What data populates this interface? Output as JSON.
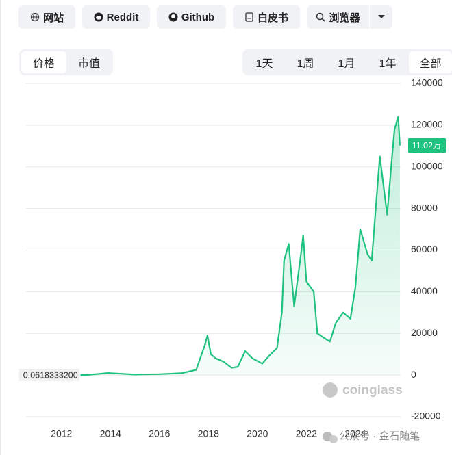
{
  "buttons": [
    "网站",
    "Reddit",
    "Github",
    "白皮书",
    "浏览器"
  ],
  "tabs": [
    "价格",
    "市值"
  ],
  "ranges": [
    "1天",
    "1周",
    "1月",
    "1年",
    "全部"
  ],
  "chart_data": {
    "type": "line",
    "fill": true,
    "color": "#1ec27e",
    "grid": true,
    "x": [
      2012.78,
      2013.0,
      2013.9,
      2014.0,
      2014.5,
      2015.0,
      2016.0,
      2016.9,
      2017.5,
      2017.87,
      2017.96,
      2018.1,
      2018.3,
      2018.6,
      2018.95,
      2019.2,
      2019.5,
      2019.8,
      2020.2,
      2020.5,
      2020.8,
      2021.0,
      2021.09,
      2021.28,
      2021.5,
      2021.8,
      2021.87,
      2022.0,
      2022.3,
      2022.45,
      2022.96,
      2023.2,
      2023.5,
      2023.8,
      2024.0,
      2024.2,
      2024.5,
      2024.67,
      2024.9,
      2025.0,
      2025.3,
      2025.5,
      2025.6,
      2025.75,
      2025.82
    ],
    "values": [
      0.06183332,
      13,
      1000,
      900,
      600,
      250,
      430,
      900,
      2500,
      15000,
      19000,
      10000,
      8000,
      6500,
      3500,
      4000,
      11500,
      8000,
      5500,
      9500,
      13000,
      30000,
      55000,
      63000,
      33000,
      60000,
      67000,
      45000,
      40000,
      20000,
      16000,
      25000,
      30000,
      27000,
      42000,
      70000,
      58000,
      55000,
      90000,
      105000,
      77000,
      105000,
      118000,
      124000,
      110200
    ],
    "xlim": [
      2010.55,
      2025.85
    ],
    "xticks": [
      2012,
      2014,
      2016,
      2018,
      2020,
      2022,
      2024
    ],
    "ylim": [
      -20000,
      140000
    ],
    "yticks": [
      -20000,
      0,
      20000,
      40000,
      60000,
      80000,
      100000,
      120000,
      140000
    ],
    "first_label": "0.0618333200",
    "last_label": "11.02万"
  },
  "watermark": "coinglass",
  "footer": "公众号 · 金石随笔"
}
